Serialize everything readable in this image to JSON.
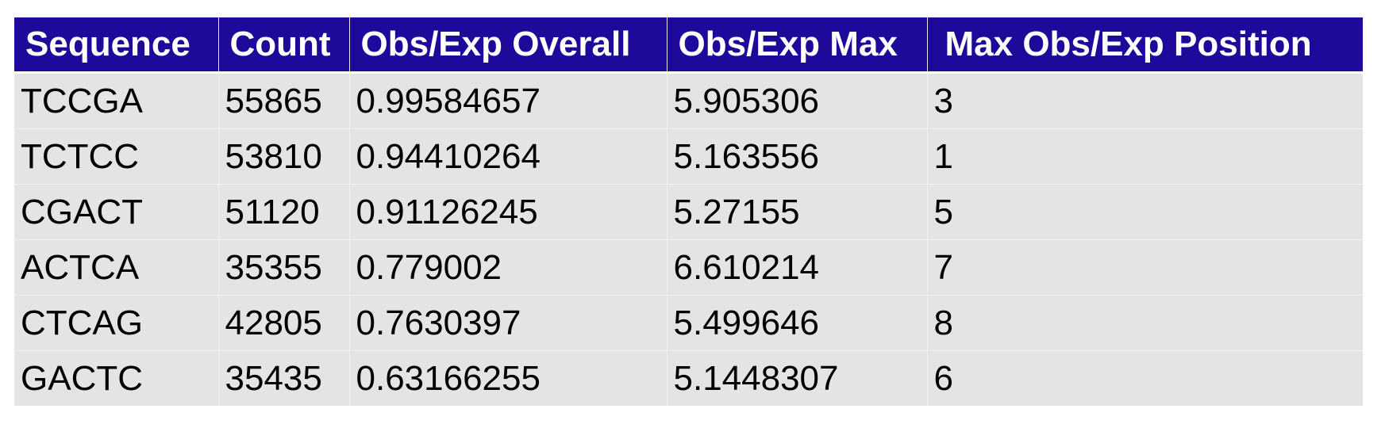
{
  "chart_data": {
    "type": "table",
    "columns": [
      "Sequence",
      "Count",
      "Obs/Exp Overall",
      "Obs/Exp Max",
      "Max Obs/Exp Position"
    ],
    "rows": [
      [
        "TCCGA",
        "55865",
        "0.99584657",
        "5.905306",
        "3"
      ],
      [
        "TCTCC",
        "53810",
        "0.94410264",
        "5.163556",
        "1"
      ],
      [
        "CGACT",
        "51120",
        "0.91126245",
        "5.27155",
        "5"
      ],
      [
        "ACTCA",
        "35355",
        "0.779002",
        "6.610214",
        "7"
      ],
      [
        "CTCAG",
        "42805",
        "0.7630397",
        "5.499646",
        "8"
      ],
      [
        "GACTC",
        "35435",
        "0.63166255",
        "5.1448307",
        "6"
      ]
    ]
  },
  "colors": {
    "header_bg": "#1e0a9a",
    "header_text": "#ffffff",
    "row_bg": "#e4e4e4",
    "row_text": "#000000"
  }
}
